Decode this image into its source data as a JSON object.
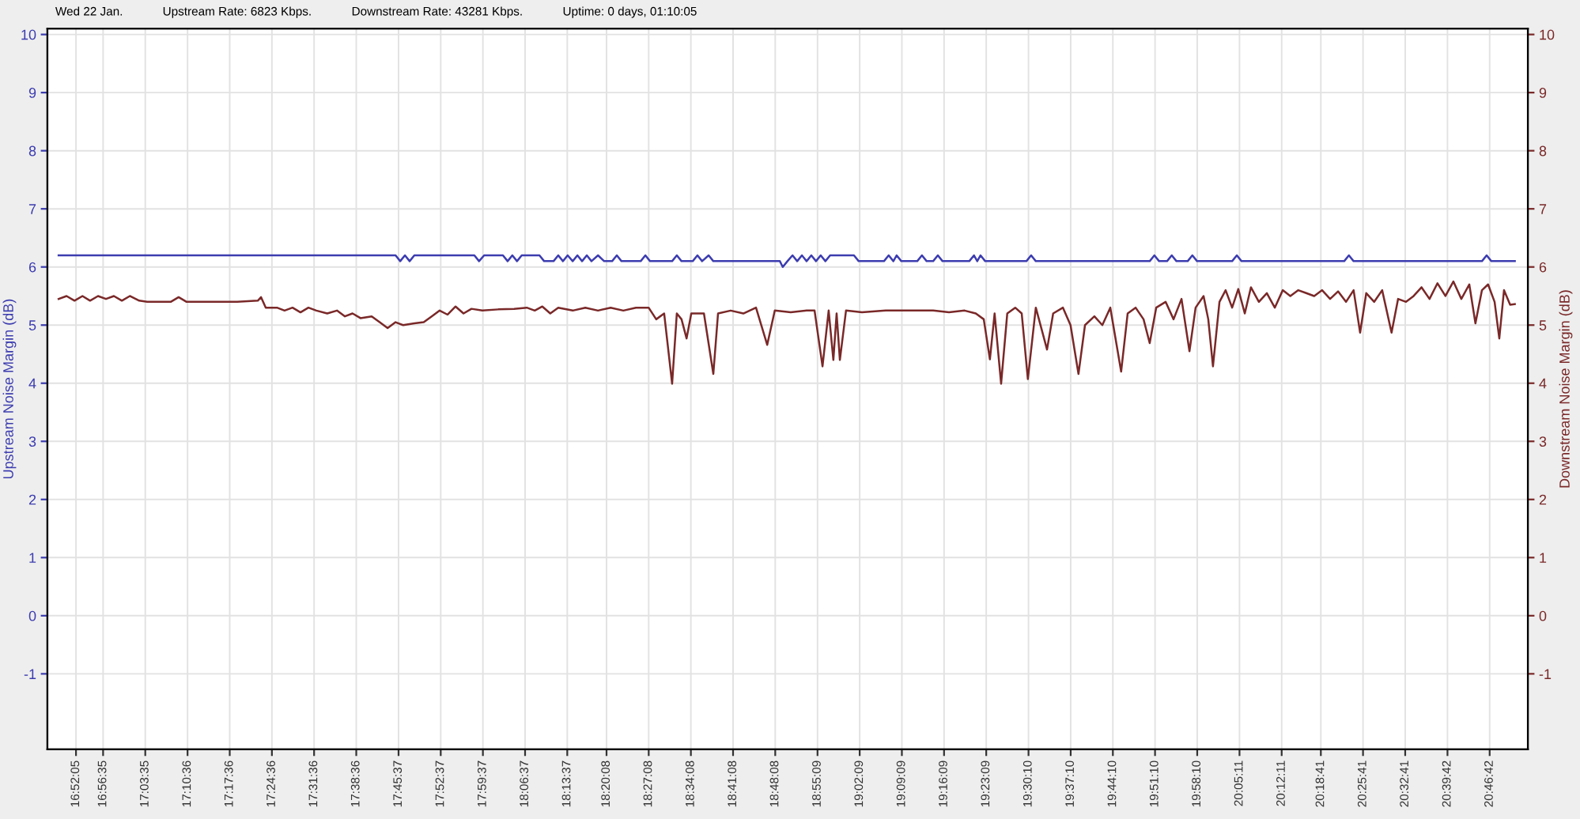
{
  "chart_data": {
    "type": "line",
    "annotations": [
      "Wed 22 Jan.",
      "Upstream Rate: 6823 Kbps.",
      "Downstream Rate: 43281 Kbps.",
      "Uptime: 0 days, 01:10:05"
    ],
    "ylabel": "Upstream Noise Margin (dB)",
    "y2label": "Downstream Noise Margin (dB)",
    "xlim": [
      16.789,
      20.884
    ],
    "xticks": [
      {
        "value": 16.86806,
        "label": "16:52:05"
      },
      {
        "value": 16.94306,
        "label": "16:56:35"
      },
      {
        "value": 17.05972,
        "label": "17:03:35"
      },
      {
        "value": 17.17667,
        "label": "17:10:36"
      },
      {
        "value": 17.29333,
        "label": "17:17:36"
      },
      {
        "value": 17.41,
        "label": "17:24:36"
      },
      {
        "value": 17.52667,
        "label": "17:31:36"
      },
      {
        "value": 17.64333,
        "label": "17:38:36"
      },
      {
        "value": 17.76028,
        "label": "17:45:37"
      },
      {
        "value": 17.87694,
        "label": "17:52:37"
      },
      {
        "value": 17.99361,
        "label": "17:59:37"
      },
      {
        "value": 18.11028,
        "label": "18:06:37"
      },
      {
        "value": 18.22694,
        "label": "18:13:37"
      },
      {
        "value": 18.33556,
        "label": "18:20:08"
      },
      {
        "value": 18.45222,
        "label": "18:27:08"
      },
      {
        "value": 18.56889,
        "label": "18:34:08"
      },
      {
        "value": 18.68556,
        "label": "18:41:08"
      },
      {
        "value": 18.80222,
        "label": "18:48:08"
      },
      {
        "value": 18.91917,
        "label": "18:55:09"
      },
      {
        "value": 19.03583,
        "label": "19:02:09"
      },
      {
        "value": 19.1525,
        "label": "19:09:09"
      },
      {
        "value": 19.26917,
        "label": "19:16:09"
      },
      {
        "value": 19.38583,
        "label": "19:23:09"
      },
      {
        "value": 19.50278,
        "label": "19:30:10"
      },
      {
        "value": 19.61944,
        "label": "19:37:10"
      },
      {
        "value": 19.73611,
        "label": "19:44:10"
      },
      {
        "value": 19.85278,
        "label": "19:51:10"
      },
      {
        "value": 19.96944,
        "label": "19:58:10"
      },
      {
        "value": 20.08639,
        "label": "20:05:11"
      },
      {
        "value": 20.20306,
        "label": "20:12:11"
      },
      {
        "value": 20.31139,
        "label": "20:18:41"
      },
      {
        "value": 20.42806,
        "label": "20:25:41"
      },
      {
        "value": 20.54472,
        "label": "20:32:41"
      },
      {
        "value": 20.66167,
        "label": "20:39:42"
      },
      {
        "value": 20.77833,
        "label": "20:46:42"
      }
    ],
    "ylim": [
      -2.3,
      10.1
    ],
    "yticks": [
      -1,
      0,
      1,
      2,
      3,
      4,
      5,
      6,
      7,
      8,
      9,
      10
    ],
    "y2lim": [
      -2.3,
      10.1
    ],
    "y2ticks": [
      -1,
      0,
      1,
      2,
      3,
      4,
      5,
      6,
      7,
      8,
      9,
      10
    ],
    "grid": true,
    "marker": "none",
    "line_style": "solid",
    "series": [
      {
        "color": "#3c3cb0",
        "axis": "y",
        "x": [
          16.82,
          17.752,
          17.765,
          17.778,
          17.791,
          17.804,
          17.97,
          17.983,
          17.997,
          18.049,
          18.062,
          18.075,
          18.088,
          18.101,
          18.15,
          18.163,
          18.189,
          18.202,
          18.215,
          18.228,
          18.242,
          18.255,
          18.268,
          18.281,
          18.294,
          18.312,
          18.329,
          18.351,
          18.364,
          18.377,
          18.43,
          18.443,
          18.456,
          18.517,
          18.53,
          18.543,
          18.574,
          18.587,
          18.6,
          18.618,
          18.631,
          18.815,
          18.823,
          18.836,
          18.85,
          18.863,
          18.876,
          18.889,
          18.902,
          18.915,
          18.928,
          18.941,
          18.954,
          18.976,
          19.02,
          19.033,
          19.103,
          19.116,
          19.129,
          19.138,
          19.151,
          19.195,
          19.208,
          19.221,
          19.239,
          19.252,
          19.265,
          19.339,
          19.352,
          19.361,
          19.37,
          19.383,
          19.497,
          19.51,
          19.523,
          19.838,
          19.851,
          19.864,
          19.886,
          19.899,
          19.912,
          19.943,
          19.956,
          19.969,
          20.066,
          20.079,
          20.092,
          20.376,
          20.389,
          20.402,
          20.757,
          20.77,
          20.783,
          20.848
        ],
        "values": [
          6.2,
          6.2,
          6.1,
          6.2,
          6.1,
          6.2,
          6.2,
          6.1,
          6.2,
          6.2,
          6.1,
          6.2,
          6.1,
          6.2,
          6.2,
          6.1,
          6.1,
          6.2,
          6.1,
          6.2,
          6.1,
          6.2,
          6.1,
          6.2,
          6.1,
          6.2,
          6.1,
          6.1,
          6.2,
          6.1,
          6.1,
          6.2,
          6.1,
          6.1,
          6.2,
          6.1,
          6.1,
          6.2,
          6.1,
          6.2,
          6.1,
          6.1,
          6.0,
          6.1,
          6.2,
          6.1,
          6.2,
          6.1,
          6.2,
          6.1,
          6.2,
          6.1,
          6.2,
          6.2,
          6.2,
          6.1,
          6.1,
          6.2,
          6.1,
          6.2,
          6.1,
          6.1,
          6.2,
          6.1,
          6.1,
          6.2,
          6.1,
          6.1,
          6.2,
          6.1,
          6.2,
          6.1,
          6.1,
          6.2,
          6.1,
          6.1,
          6.2,
          6.1,
          6.1,
          6.2,
          6.1,
          6.1,
          6.2,
          6.1,
          6.1,
          6.2,
          6.1,
          6.1,
          6.2,
          6.1,
          6.1,
          6.2,
          6.1,
          6.1
        ]
      },
      {
        "color": "#7a2828",
        "axis": "y2",
        "x": [
          16.82,
          16.842,
          16.864,
          16.886,
          16.907,
          16.929,
          16.951,
          16.973,
          16.995,
          17.017,
          17.043,
          17.065,
          17.095,
          17.13,
          17.152,
          17.174,
          17.196,
          17.24,
          17.284,
          17.314,
          17.371,
          17.38,
          17.393,
          17.424,
          17.445,
          17.467,
          17.489,
          17.511,
          17.533,
          17.563,
          17.59,
          17.612,
          17.633,
          17.655,
          17.686,
          17.708,
          17.73,
          17.752,
          17.773,
          17.804,
          17.83,
          17.852,
          17.874,
          17.896,
          17.918,
          17.94,
          17.962,
          17.992,
          18.036,
          18.08,
          18.115,
          18.137,
          18.158,
          18.18,
          18.202,
          18.242,
          18.277,
          18.312,
          18.347,
          18.382,
          18.417,
          18.452,
          18.473,
          18.495,
          18.517,
          18.53,
          18.543,
          18.557,
          18.57,
          18.605,
          18.631,
          18.644,
          18.679,
          18.714,
          18.749,
          18.78,
          18.801,
          18.845,
          18.889,
          18.911,
          18.933,
          18.95,
          18.963,
          18.972,
          18.981,
          18.998,
          19.042,
          19.108,
          19.173,
          19.239,
          19.283,
          19.326,
          19.357,
          19.379,
          19.396,
          19.409,
          19.427,
          19.444,
          19.466,
          19.484,
          19.501,
          19.523,
          19.554,
          19.571,
          19.598,
          19.619,
          19.641,
          19.659,
          19.685,
          19.707,
          19.729,
          19.759,
          19.777,
          19.799,
          19.821,
          19.838,
          19.856,
          19.882,
          19.904,
          19.926,
          19.948,
          19.965,
          19.987,
          20.0,
          20.013,
          20.031,
          20.048,
          20.066,
          20.083,
          20.101,
          20.118,
          20.14,
          20.162,
          20.184,
          20.206,
          20.227,
          20.249,
          20.271,
          20.293,
          20.315,
          20.337,
          20.359,
          20.381,
          20.402,
          20.42,
          20.437,
          20.459,
          20.481,
          20.507,
          20.525,
          20.547,
          20.568,
          20.59,
          20.612,
          20.634,
          20.656,
          20.678,
          20.7,
          20.722,
          20.739,
          20.757,
          20.774,
          20.792,
          20.805,
          20.818,
          20.835,
          20.848
        ],
        "values": [
          5.45,
          5.5,
          5.42,
          5.5,
          5.42,
          5.5,
          5.45,
          5.5,
          5.42,
          5.5,
          5.42,
          5.4,
          5.4,
          5.4,
          5.48,
          5.4,
          5.4,
          5.4,
          5.4,
          5.4,
          5.42,
          5.48,
          5.3,
          5.3,
          5.25,
          5.3,
          5.22,
          5.3,
          5.25,
          5.2,
          5.25,
          5.15,
          5.2,
          5.12,
          5.15,
          5.05,
          4.95,
          5.05,
          5.0,
          5.03,
          5.05,
          5.15,
          5.25,
          5.18,
          5.32,
          5.2,
          5.28,
          5.25,
          5.27,
          5.28,
          5.3,
          5.25,
          5.32,
          5.2,
          5.3,
          5.25,
          5.3,
          5.25,
          5.3,
          5.25,
          5.3,
          5.3,
          5.1,
          5.2,
          3.99,
          5.2,
          5.1,
          4.77,
          5.2,
          5.2,
          4.16,
          5.2,
          5.25,
          5.2,
          5.3,
          4.66,
          5.25,
          5.22,
          5.25,
          5.25,
          4.29,
          5.25,
          4.4,
          5.2,
          4.4,
          5.25,
          5.22,
          5.25,
          5.25,
          5.25,
          5.22,
          5.25,
          5.2,
          5.1,
          4.41,
          5.2,
          3.99,
          5.2,
          5.3,
          5.2,
          4.07,
          5.3,
          4.58,
          5.2,
          5.3,
          5.0,
          4.16,
          5.0,
          5.15,
          5.0,
          5.3,
          4.2,
          5.2,
          5.3,
          5.1,
          4.69,
          5.3,
          5.4,
          5.1,
          5.45,
          4.55,
          5.3,
          5.5,
          5.1,
          4.29,
          5.4,
          5.6,
          5.3,
          5.62,
          5.2,
          5.65,
          5.4,
          5.55,
          5.3,
          5.6,
          5.5,
          5.6,
          5.55,
          5.5,
          5.6,
          5.45,
          5.58,
          5.4,
          5.6,
          4.87,
          5.55,
          5.4,
          5.6,
          4.87,
          5.45,
          5.4,
          5.5,
          5.65,
          5.45,
          5.72,
          5.5,
          5.75,
          5.45,
          5.7,
          5.03,
          5.6,
          5.7,
          5.4,
          4.77,
          5.6,
          5.35,
          5.36
        ]
      }
    ]
  }
}
